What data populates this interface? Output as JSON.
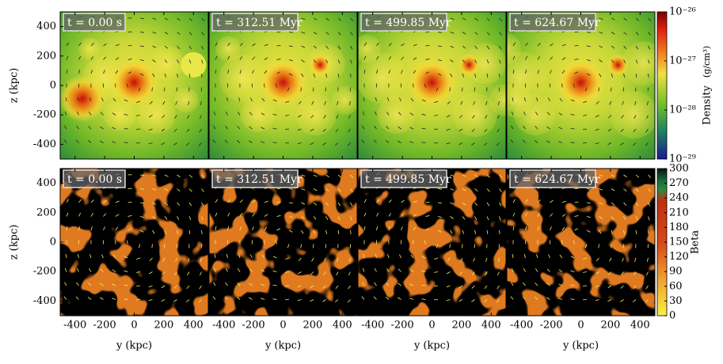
{
  "chart_data": [
    {
      "type": "heatmap",
      "map": "density",
      "panels": [
        "t = 0.00 s",
        "t = 312.51 Myr",
        "t = 499.85 Myr",
        "t = 624.67 Myr"
      ],
      "ylabel": "z (kpc)",
      "xlim": [
        -500,
        500
      ],
      "xticks": [
        -400,
        -200,
        0,
        200,
        400
      ],
      "ylim": [
        -500,
        500
      ],
      "yticks": [
        400,
        200,
        0,
        -200,
        -400
      ],
      "colorbar": {
        "label": "Density",
        "unit": "(g/cm³)",
        "log": true,
        "clim": [
          1e-29,
          1e-26
        ],
        "ticks": [
          {
            "value": 1e-26,
            "label": "10⁻²⁶"
          },
          {
            "value": 1e-27,
            "label": "10⁻²⁷"
          },
          {
            "value": 1e-28,
            "label": "10⁻²⁸"
          },
          {
            "value": 1e-29,
            "label": "10⁻²⁹"
          }
        ]
      }
    },
    {
      "type": "heatmap",
      "map": "beta",
      "panels": [
        "t = 0.00 s",
        "t = 312.51 Myr",
        "t = 499.85 Myr",
        "t = 624.67 Myr"
      ],
      "ylabel": "z (kpc)",
      "xlabel": "y (kpc)",
      "xlim": [
        -500,
        500
      ],
      "xticks": [
        -400,
        -200,
        0,
        200,
        400
      ],
      "ylim": [
        -500,
        500
      ],
      "yticks": [
        400,
        200,
        0,
        -200,
        -400
      ],
      "colorbar": {
        "label": "Beta",
        "log": false,
        "clim": [
          0,
          300
        ],
        "ticks": [
          300,
          270,
          240,
          210,
          180,
          150,
          120,
          90,
          60,
          30,
          0
        ]
      }
    }
  ]
}
